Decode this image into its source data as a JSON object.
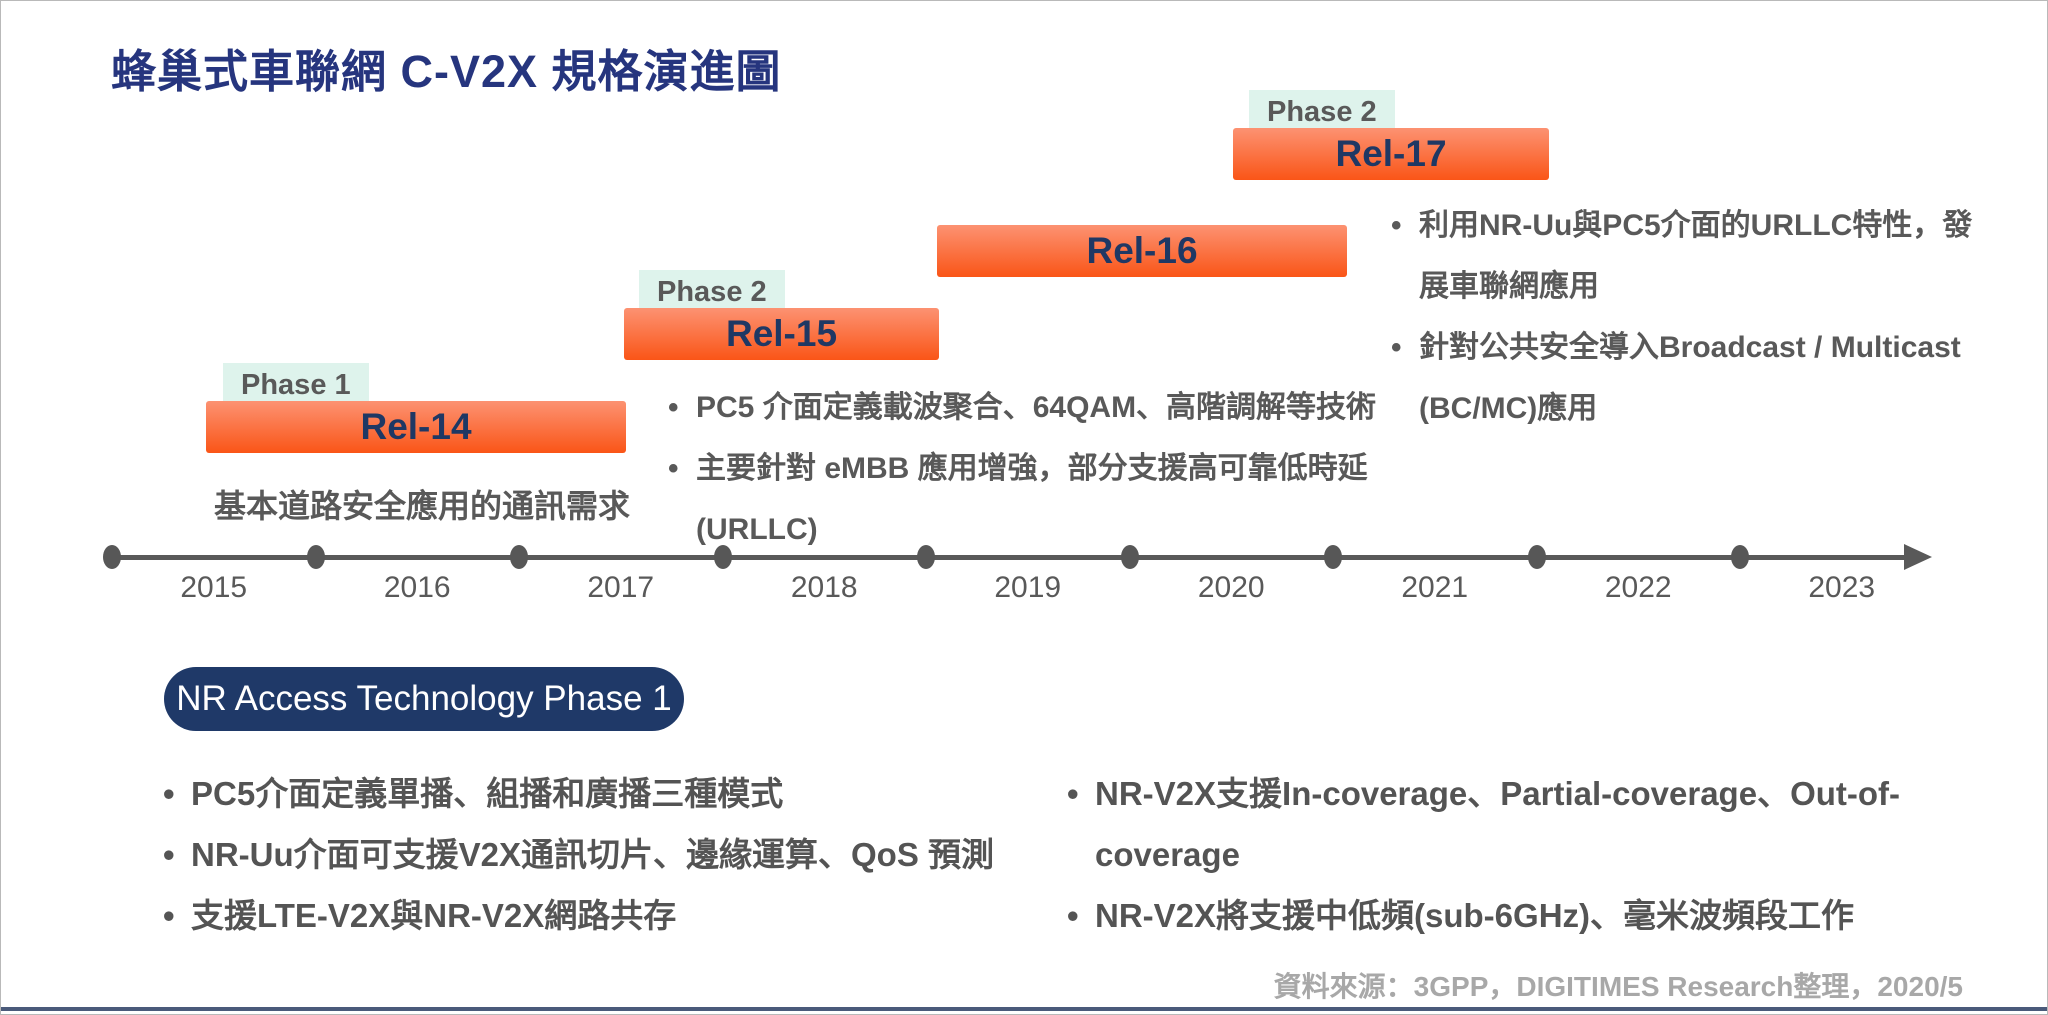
{
  "title": "蜂巢式車聯網 C-V2X 規格演進圖",
  "colors": {
    "navy_title": "#26357e",
    "navy_rel": "#1f3864",
    "bar_gradient_top": "#fc9272",
    "bar_gradient_bottom": "#fa5517",
    "phase_tag_bg": "#def3ec",
    "body_text": "#595959",
    "badge_bg": "#1f3968",
    "source_text": "#a8a8a8",
    "footer_rule": "#4a5a7a"
  },
  "releases": [
    {
      "label": "Rel-14",
      "phase": "Phase 1",
      "caption": "基本道路安全應用的通訊需求"
    },
    {
      "label": "Rel-15",
      "phase": "Phase 2"
    },
    {
      "label": "Rel-16"
    },
    {
      "label": "Rel-17",
      "phase": "Phase 2"
    }
  ],
  "rel15_notes": [
    "PC5 介面定義載波聚合、64QAM、高階調解等技術",
    "主要針對 eMBB 應用增強，部分支援高可靠低時延(URLLC)"
  ],
  "rel17_notes": [
    "利用NR-Uu與PC5介面的URLLC特性，發展車聯網應用",
    "針對公共安全導入Broadcast / Multicast (BC/MC)應用"
  ],
  "timeline": {
    "years": [
      "2015",
      "2016",
      "2017",
      "2018",
      "2019",
      "2020",
      "2021",
      "2022",
      "2023"
    ]
  },
  "nr_badge": "NR Access Technology Phase 1",
  "nr_notes_left": [
    "PC5介面定義單播、組播和廣播三種模式",
    "NR-Uu介面可支援V2X通訊切片、邊緣運算、QoS 預測",
    "支援LTE-V2X與NR-V2X網路共存"
  ],
  "nr_notes_right": [
    "NR-V2X支援In-coverage、Partial-coverage、Out-of-coverage",
    "NR-V2X將支援中低頻(sub-6GHz)、毫米波頻段工作"
  ],
  "source": "資料來源：3GPP，DIGITIMES Research整理，2020/5"
}
